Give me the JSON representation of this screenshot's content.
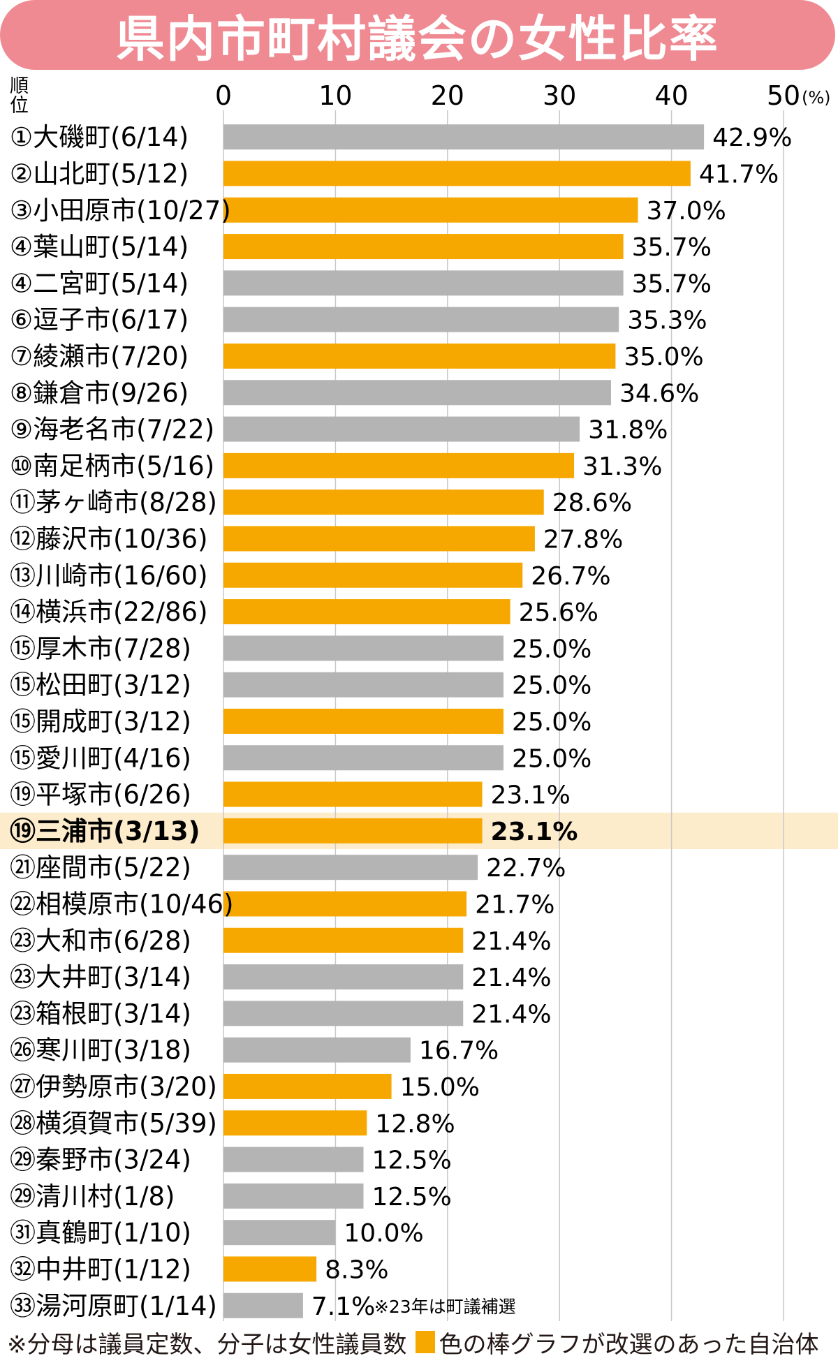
{
  "title": "県内市町村議会の女性比率",
  "rank_header": [
    "順",
    "位"
  ],
  "footnote": "※分母は議員定数、分子は女性議員数",
  "legend_label": "色の棒グラフが改選のあった自治体",
  "colors": {
    "title_bg": "#ef8a93",
    "reelected": "#f6a800",
    "other": "#b4b4b4",
    "highlight_bg": "#fdeccc",
    "grid": "#c8c8c8"
  },
  "chart_data": {
    "type": "bar",
    "orientation": "horizontal",
    "title": "県内市町村議会の女性比率",
    "xlim": [
      0,
      50
    ],
    "ticks": [
      "0",
      "10",
      "20",
      "30",
      "40",
      "50"
    ],
    "unit": "(%)",
    "grid": true,
    "highlight_index": 19,
    "annotation": "※23年は町議補選",
    "categories": [
      "①大磯町(6/14)",
      "②山北町(5/12)",
      "③小田原市(10/27)",
      "④葉山町(5/14)",
      "④二宮町(5/14)",
      "⑥逗子市(6/17)",
      "⑦綾瀬市(7/20)",
      "⑧鎌倉市(9/26)",
      "⑨海老名市(7/22)",
      "⑩南足柄市(5/16)",
      "⑪茅ヶ崎市(8/28)",
      "⑫藤沢市(10/36)",
      "⑬川崎市(16/60)",
      "⑭横浜市(22/86)",
      "⑮厚木市(7/28)",
      "⑮松田町(3/12)",
      "⑮開成町(3/12)",
      "⑮愛川町(4/16)",
      "⑲平塚市(6/26)",
      "⑲三浦市(3/13)",
      "㉑座間市(5/22)",
      "㉒相模原市(10/46)",
      "㉓大和市(6/28)",
      "㉓大井町(3/14)",
      "㉓箱根町(3/14)",
      "㉖寒川町(3/18)",
      "㉗伊勢原市(3/20)",
      "㉘横須賀市(5/39)",
      "㉙秦野市(3/24)",
      "㉙清川村(1/8)",
      "㉛真鶴町(1/10)",
      "㉜中井町(1/12)",
      "㉝湯河原町(1/14)"
    ],
    "values": [
      42.9,
      41.7,
      37.0,
      35.7,
      35.7,
      35.3,
      35.0,
      34.6,
      31.8,
      31.3,
      28.6,
      27.8,
      26.7,
      25.6,
      25.0,
      25.0,
      25.0,
      25.0,
      23.1,
      23.1,
      22.7,
      21.7,
      21.4,
      21.4,
      21.4,
      16.7,
      15.0,
      12.8,
      12.5,
      12.5,
      10.0,
      8.3,
      7.1
    ],
    "value_labels": [
      "42.9%",
      "41.7%",
      "37.0%",
      "35.7%",
      "35.7%",
      "35.3%",
      "35.0%",
      "34.6%",
      "31.8%",
      "31.3%",
      "28.6%",
      "27.8%",
      "26.7%",
      "25.6%",
      "25.0%",
      "25.0%",
      "25.0%",
      "25.0%",
      "23.1%",
      "23.1%",
      "22.7%",
      "21.7%",
      "21.4%",
      "21.4%",
      "21.4%",
      "16.7%",
      "15.0%",
      "12.8%",
      "12.5%",
      "12.5%",
      "10.0%",
      "8.3%",
      "7.1%"
    ],
    "reelected": [
      false,
      true,
      true,
      true,
      false,
      false,
      true,
      false,
      false,
      true,
      true,
      true,
      true,
      true,
      false,
      false,
      true,
      false,
      true,
      true,
      false,
      true,
      true,
      false,
      false,
      false,
      true,
      true,
      false,
      false,
      false,
      true,
      false
    ]
  }
}
